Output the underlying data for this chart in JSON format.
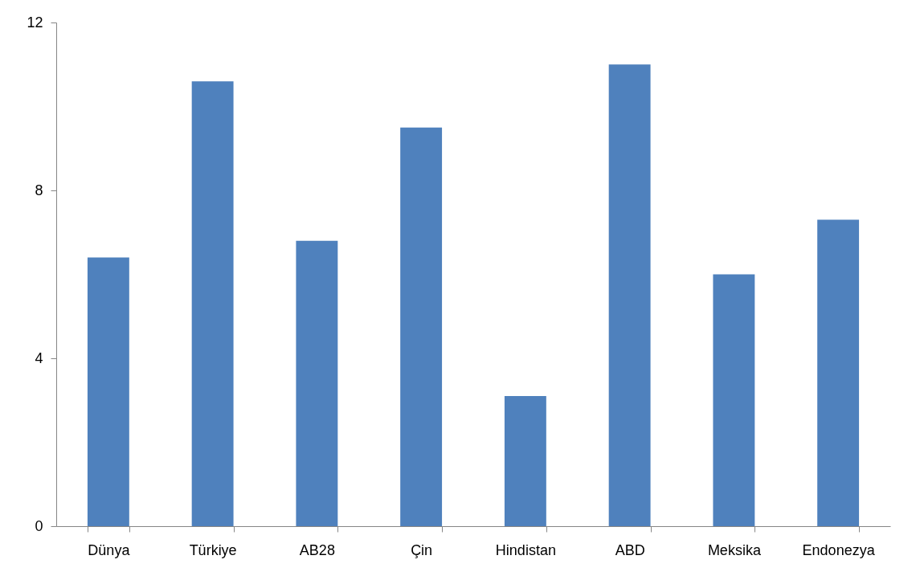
{
  "chart_data": {
    "type": "bar",
    "categories": [
      "Dünya",
      "Türkiye",
      "AB28",
      "Çin",
      "Hindistan",
      "ABD",
      "Meksika",
      "Endonezya"
    ],
    "values": [
      6.4,
      10.6,
      6.8,
      9.5,
      3.1,
      11.0,
      6.0,
      7.3
    ],
    "color": "#4f81bd",
    "ylim": [
      0,
      12
    ],
    "yticks": [
      0,
      4,
      8,
      12
    ],
    "grid": false,
    "legend": false
  }
}
